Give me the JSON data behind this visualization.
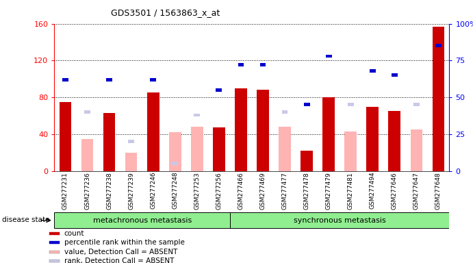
{
  "title": "GDS3501 / 1563863_x_at",
  "samples": [
    "GSM277231",
    "GSM277236",
    "GSM277238",
    "GSM277239",
    "GSM277246",
    "GSM277248",
    "GSM277253",
    "GSM277256",
    "GSM277466",
    "GSM277469",
    "GSM277477",
    "GSM277478",
    "GSM277479",
    "GSM277481",
    "GSM277494",
    "GSM277646",
    "GSM277647",
    "GSM277648"
  ],
  "count_values": [
    75,
    0,
    63,
    0,
    85,
    0,
    0,
    47,
    90,
    88,
    0,
    22,
    80,
    0,
    70,
    65,
    0,
    157
  ],
  "absent_value_values": [
    0,
    35,
    0,
    20,
    0,
    42,
    48,
    0,
    0,
    0,
    48,
    0,
    0,
    43,
    0,
    0,
    45,
    0
  ],
  "percentile_pct": [
    62,
    0,
    62,
    0,
    62,
    0,
    0,
    55,
    72,
    72,
    0,
    45,
    78,
    0,
    68,
    65,
    0,
    85
  ],
  "absent_rank_pct": [
    0,
    40,
    0,
    20,
    0,
    5,
    38,
    0,
    0,
    0,
    40,
    0,
    0,
    45,
    0,
    0,
    45,
    0
  ],
  "group1_indices": [
    0,
    1,
    2,
    3,
    4,
    5,
    6,
    7
  ],
  "group2_indices": [
    8,
    9,
    10,
    11,
    12,
    13,
    14,
    15,
    16,
    17
  ],
  "group1_label": "metachronous metastasis",
  "group2_label": "synchronous metastasis",
  "disease_state_label": "disease state",
  "ylim_left": [
    0,
    160
  ],
  "ylim_right": [
    0,
    100
  ],
  "yticks_left": [
    0,
    40,
    80,
    120,
    160
  ],
  "yticks_right": [
    0,
    25,
    50,
    75,
    100
  ],
  "ytick_right_labels": [
    "0",
    "25",
    "50",
    "75",
    "100%"
  ],
  "bar_width": 0.55,
  "color_count": "#cc0000",
  "color_percentile": "#0000cc",
  "color_absent_value": "#ffb3b3",
  "color_absent_rank": "#c8c8e8",
  "legend_items": [
    {
      "label": "count",
      "color": "#cc0000"
    },
    {
      "label": "percentile rank within the sample",
      "color": "#0000cc"
    },
    {
      "label": "value, Detection Call = ABSENT",
      "color": "#ffb3b3"
    },
    {
      "label": "rank, Detection Call = ABSENT",
      "color": "#c8c8e8"
    }
  ],
  "bg_color": "#f0f0f0",
  "plot_bg": "#ffffff"
}
